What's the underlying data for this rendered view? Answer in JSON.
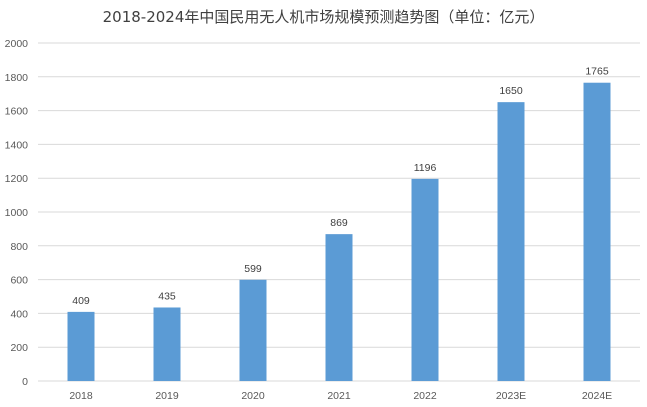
{
  "chart_data": {
    "type": "bar",
    "title": "2018-2024年中国民用无人机市场规模预测趋势图（单位：亿元）",
    "categories": [
      "2018",
      "2019",
      "2020",
      "2021",
      "2022",
      "2023E",
      "2024E"
    ],
    "values": [
      409,
      435,
      599,
      869,
      1196,
      1650,
      1765
    ],
    "ylim": [
      0,
      2000
    ],
    "yticks": [
      0,
      200,
      400,
      600,
      800,
      1000,
      1200,
      1400,
      1600,
      1800,
      2000
    ],
    "xlabel": "",
    "ylabel": "",
    "grid": true,
    "legend": "none",
    "bar_color": "#5B9BD5",
    "grid_color": "#D9D9D9"
  }
}
